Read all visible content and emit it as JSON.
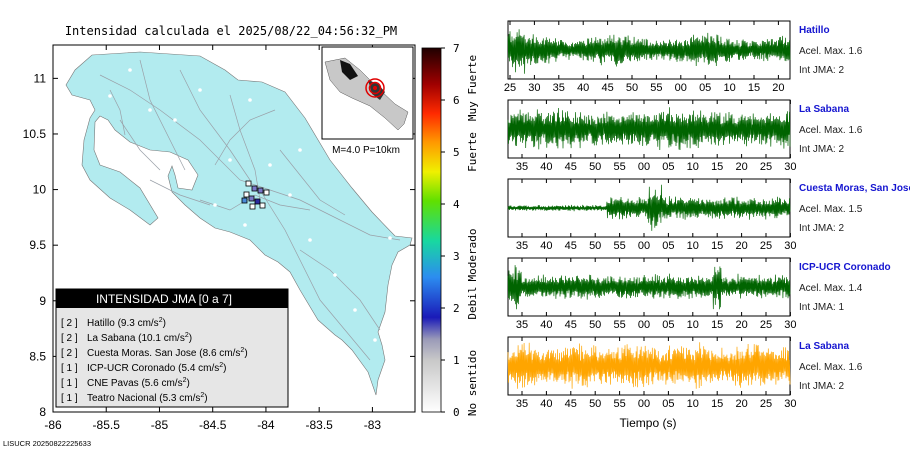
{
  "map": {
    "title": "Intensidad calculada el 2025/08/22_04:56:32_PM",
    "footer_id": "LISUCR 20250822225633",
    "xlim": [
      -86,
      -82.6
    ],
    "ylim": [
      8,
      11.3
    ],
    "x_ticks": [
      "-86",
      "-85.5",
      "-85",
      "-84.5",
      "-84",
      "-83.5",
      "-83"
    ],
    "y_ticks": [
      "11",
      "10.5",
      "10",
      "9.5",
      "9",
      "8.5",
      "8"
    ],
    "inset_label": "M=4.0 P=10km",
    "legend_title": "INTENSIDAD JMA [0 a 7]",
    "legend_items": [
      {
        "level": "[ 2 ]",
        "name": "Hatillo (9.3 cm/s",
        "sup": "2",
        "close": ")"
      },
      {
        "level": "[ 2 ]",
        "name": "La Sabana (10.1 cm/s",
        "sup": "2",
        "close": ")"
      },
      {
        "level": "[ 2 ]",
        "name": "Cuesta Moras. San Jose (8.6 cm/s",
        "sup": "2",
        "close": ")"
      },
      {
        "level": "[ 1 ]",
        "name": "ICP-UCR Coronado (5.4 cm/s",
        "sup": "2",
        "close": ")"
      },
      {
        "level": "[ 1 ]",
        "name": "CNE Pavas (5.6 cm/s",
        "sup": "2",
        "close": ")"
      },
      {
        "level": "[ 1 ]",
        "name": "Teatro Nacional (5.3 cm/s",
        "sup": "2",
        "close": ")"
      }
    ]
  },
  "colorbar": {
    "ticks": [
      "7",
      "6",
      "5",
      "4",
      "3",
      "2",
      "1",
      "0"
    ],
    "labels": [
      "Muy Fuerte",
      "Fuerte",
      "Moderado",
      "Debil",
      "No sentido"
    ]
  },
  "waveforms": {
    "xlabel": "Tiempo (s)",
    "panels": [
      {
        "station": "Hatillo",
        "acel": "Acel. Max. 1.6",
        "jma": "Int JMA: 2",
        "color": "#006400",
        "ticks": [
          "25",
          "30",
          "35",
          "40",
          "45",
          "50",
          "55",
          "00",
          "05",
          "10",
          "15",
          "20"
        ]
      },
      {
        "station": "La Sabana",
        "acel": "Acel. Max. 1.6",
        "jma": "Int JMA: 2",
        "color": "#006400",
        "ticks": [
          "35",
          "40",
          "45",
          "50",
          "55",
          "00",
          "05",
          "10",
          "15",
          "20",
          "25",
          "30"
        ]
      },
      {
        "station": "Cuesta Moras, San Jose",
        "acel": "Acel. Max. 1.5",
        "jma": "Int JMA: 2",
        "color": "#006400",
        "ticks": [
          "35",
          "40",
          "45",
          "50",
          "55",
          "00",
          "05",
          "10",
          "15",
          "20",
          "25",
          "30"
        ]
      },
      {
        "station": "ICP-UCR Coronado",
        "acel": "Acel. Max. 1.4",
        "jma": "Int JMA: 1",
        "color": "#006400",
        "ticks": [
          "35",
          "40",
          "45",
          "50",
          "55",
          "00",
          "05",
          "10",
          "15",
          "20",
          "25",
          "30"
        ]
      },
      {
        "station": "La Sabana",
        "acel": "Acel. Max. 1.6",
        "jma": "Int JMA: 2",
        "color": "#FFA500",
        "ticks": [
          "35",
          "40",
          "45",
          "50",
          "55",
          "00",
          "05",
          "10",
          "15",
          "20",
          "25",
          "30"
        ]
      }
    ]
  },
  "chart_data": {
    "type": "line",
    "title": "Intensidad calculada el 2025/08/22_04:56:32_PM",
    "series": [
      {
        "name": "Hatillo",
        "peak_acceleration": 1.6,
        "jma_intensity": 2
      },
      {
        "name": "La Sabana",
        "peak_acceleration": 1.6,
        "jma_intensity": 2
      },
      {
        "name": "Cuesta Moras, San Jose",
        "peak_acceleration": 1.5,
        "jma_intensity": 2
      },
      {
        "name": "ICP-UCR Coronado",
        "peak_acceleration": 1.4,
        "jma_intensity": 1
      },
      {
        "name": "La Sabana",
        "peak_acceleration": 1.6,
        "jma_intensity": 2
      }
    ],
    "xlabel": "Tiempo (s)",
    "colorscale_range": [
      0,
      7
    ]
  }
}
